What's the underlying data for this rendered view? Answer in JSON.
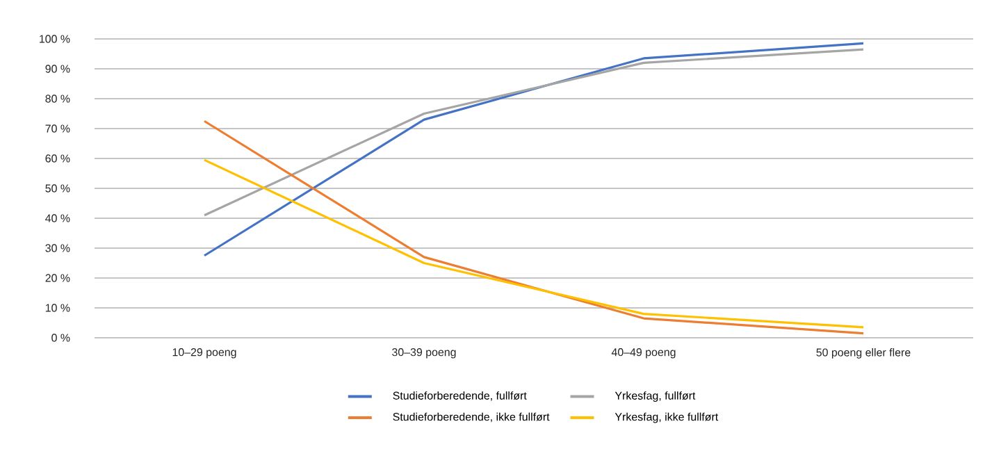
{
  "chart_data": {
    "type": "line",
    "categories": [
      "10–29 poeng",
      "30–39 poeng",
      "40–49 poeng",
      "50 poeng eller flere"
    ],
    "series": [
      {
        "name": "Studieforberedende, fullført",
        "color": "#4472c4",
        "values": [
          27.5,
          73,
          93.5,
          98.5
        ]
      },
      {
        "name": "Yrkesfag, fullført",
        "color": "#a5a5a5",
        "values": [
          41,
          75,
          92,
          96.5
        ]
      },
      {
        "name": "Studieforberedende, ikke fullført",
        "color": "#ed7d31",
        "values": [
          72.5,
          27,
          6.5,
          1.5
        ]
      },
      {
        "name": "Yrkesfag, ikke fullført",
        "color": "#ffc000",
        "values": [
          59.5,
          25,
          8,
          3.5
        ]
      }
    ],
    "ylim": [
      0,
      100
    ],
    "yticks": [
      {
        "value": 0,
        "label": "0 %"
      },
      {
        "value": 10,
        "label": "10 %"
      },
      {
        "value": 20,
        "label": "20 %"
      },
      {
        "value": 30,
        "label": "30 %"
      },
      {
        "value": 40,
        "label": "40 %"
      },
      {
        "value": 50,
        "label": "50 %"
      },
      {
        "value": 60,
        "label": "60 %"
      },
      {
        "value": 70,
        "label": "70 %"
      },
      {
        "value": 80,
        "label": "80 %"
      },
      {
        "value": 90,
        "label": "90 %"
      },
      {
        "value": 100,
        "label": "100 %"
      }
    ],
    "grid": "y",
    "legend": "bottom",
    "marker": "none",
    "line_style": "solid"
  }
}
